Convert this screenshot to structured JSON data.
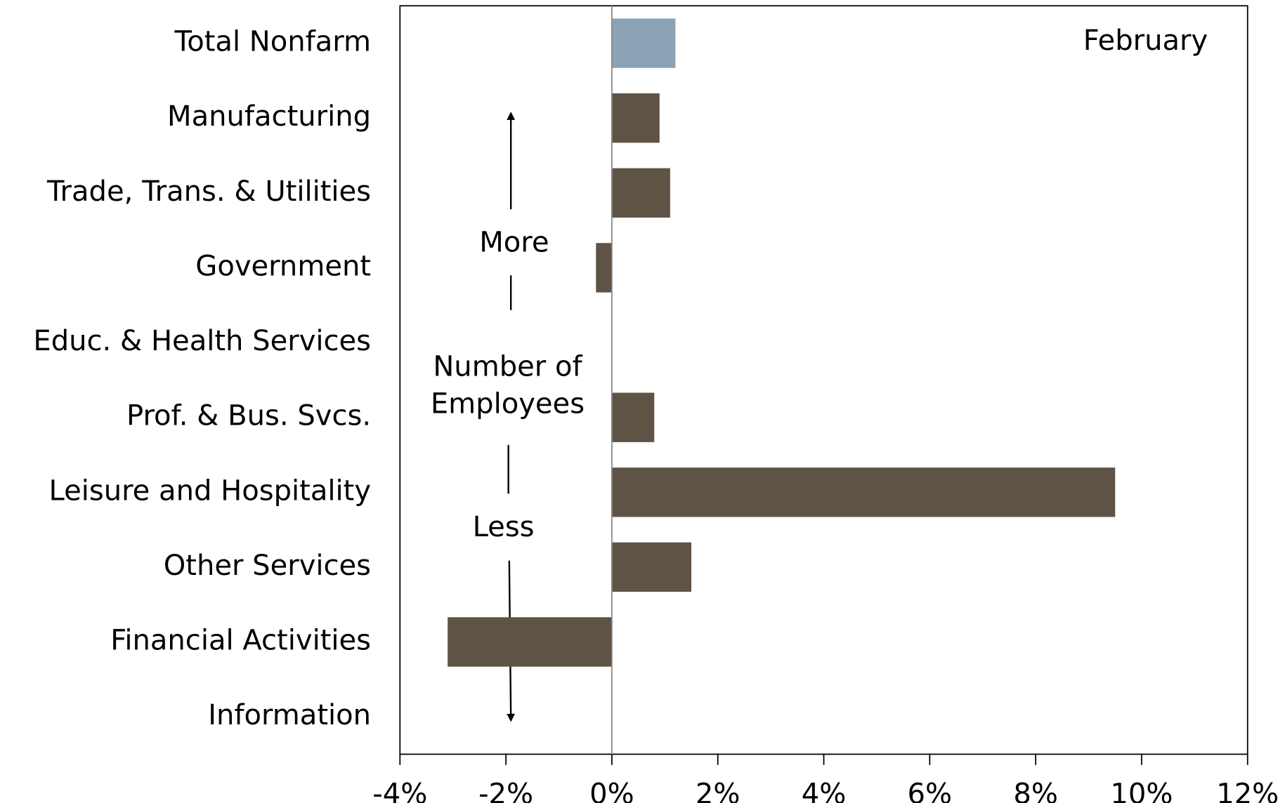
{
  "chart_data": {
    "type": "hbar",
    "categories": [
      "Total Nonfarm",
      "Manufacturing",
      "Trade, Trans. & Utilities",
      "Government",
      "Educ. & Health Services",
      "Prof. & Bus. Svcs.",
      "Leisure and Hospitality",
      "Other Services",
      "Financial Activities",
      "Information"
    ],
    "values": [
      1.2,
      0.9,
      1.1,
      -0.3,
      0,
      0.8,
      9.5,
      1.5,
      -3.1,
      0
    ],
    "colors": [
      "#8ca3b5",
      "#5f5346",
      "#5f5346",
      "#5f5346",
      "#5f5346",
      "#5f5346",
      "#5f5346",
      "#5f5346",
      "#5f5346",
      "#5f5346"
    ],
    "xlim": [
      -4,
      12
    ],
    "xticks": [
      {
        "value": -4,
        "label": "-4%"
      },
      {
        "value": -2,
        "label": "-2%"
      },
      {
        "value": 0,
        "label": "0%"
      },
      {
        "value": 2,
        "label": "2%"
      },
      {
        "value": 4,
        "label": "4%"
      },
      {
        "value": 6,
        "label": "6%"
      },
      {
        "value": 8,
        "label": "8%"
      },
      {
        "value": 10,
        "label": "10%"
      },
      {
        "value": 12,
        "label": "12%"
      }
    ],
    "annotations": [
      "February",
      "More",
      "Number of",
      "Employees",
      "Less"
    ]
  }
}
